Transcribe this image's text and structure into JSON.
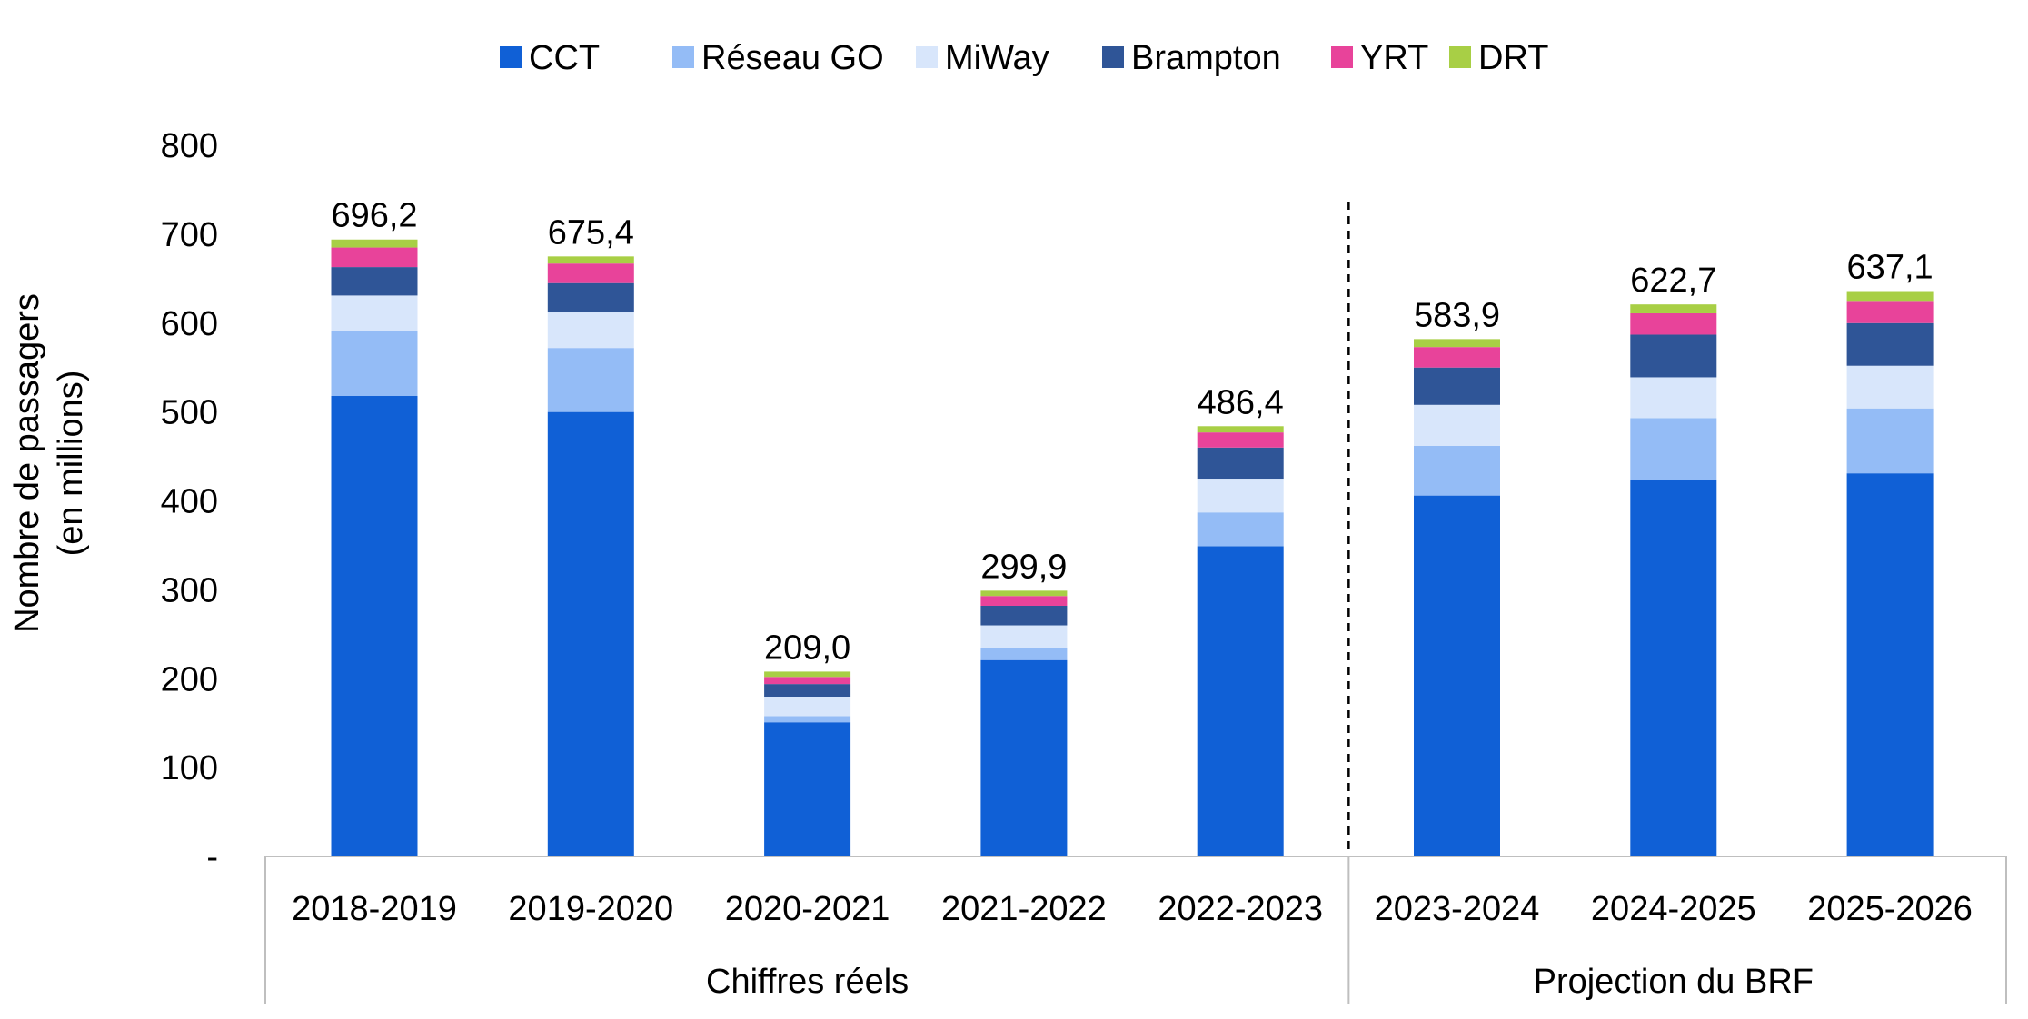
{
  "chart_data": {
    "type": "bar",
    "stacked": true,
    "title": "",
    "ylabel_line1": "Nombre de passagers",
    "ylabel_line2": "(en millions)",
    "xlabel": "",
    "ylim": [
      0,
      800
    ],
    "yticks": [
      {
        "value": 0,
        "label": "-"
      },
      {
        "value": 100,
        "label": "100"
      },
      {
        "value": 200,
        "label": "200"
      },
      {
        "value": 300,
        "label": "300"
      },
      {
        "value": 400,
        "label": "400"
      },
      {
        "value": 500,
        "label": "500"
      },
      {
        "value": 600,
        "label": "600"
      },
      {
        "value": 700,
        "label": "700"
      },
      {
        "value": 800,
        "label": "800"
      }
    ],
    "legend_position": "top",
    "grid": false,
    "categories": [
      "2018-2019",
      "2019-2020",
      "2020-2021",
      "2021-2022",
      "2022-2023",
      "2023-2024",
      "2024-2025",
      "2025-2026"
    ],
    "groups": [
      {
        "label": "Chiffres réels",
        "start": 0,
        "end": 4
      },
      {
        "label": "Projection du BRF",
        "start": 5,
        "end": 7
      }
    ],
    "totals": [
      "696,2",
      "675,4",
      "209,0",
      "299,9",
      "486,4",
      "583,9",
      "622,7",
      "637,1"
    ],
    "series": [
      {
        "name": "CCT",
        "color": "#1060d6",
        "values": [
          518,
          500,
          151,
          221,
          349,
          406,
          423,
          431
        ]
      },
      {
        "name": "Réseau GO",
        "color": "#94bcf6",
        "values": [
          73,
          72,
          7,
          14,
          38,
          56,
          70,
          73
        ]
      },
      {
        "name": "MiWay",
        "color": "#d8e6fb",
        "values": [
          40,
          40,
          21,
          25,
          38,
          46,
          46,
          48
        ]
      },
      {
        "name": "Brampton",
        "color": "#2f5597",
        "values": [
          32,
          33,
          15,
          22,
          35,
          42,
          48,
          48
        ]
      },
      {
        "name": "YRT",
        "color": "#e8439a",
        "values": [
          22,
          22,
          8,
          11,
          17,
          23,
          24,
          25
        ]
      },
      {
        "name": "DRT",
        "color": "#a8cf45",
        "values": [
          9,
          8,
          6,
          6,
          7,
          9,
          10,
          11
        ]
      }
    ]
  }
}
